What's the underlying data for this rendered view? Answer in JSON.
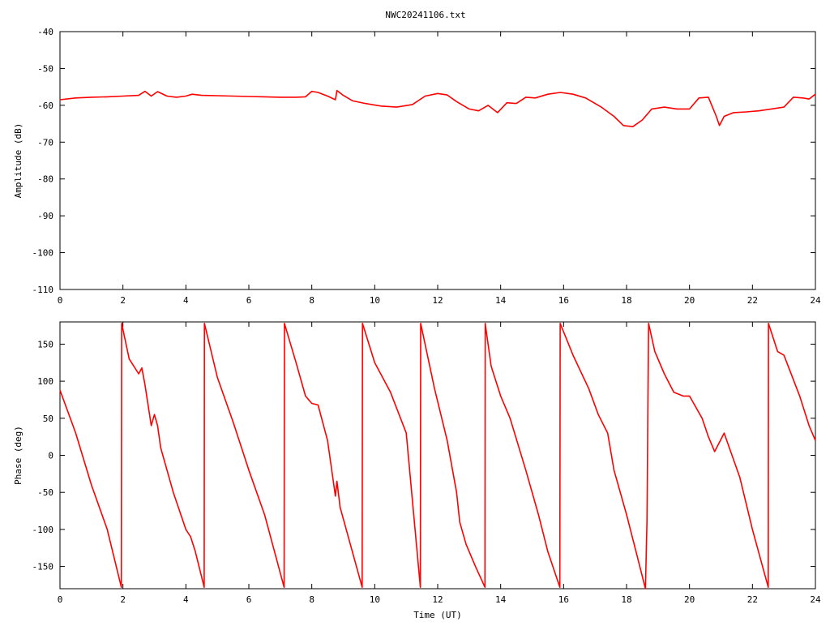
{
  "figure": {
    "title": "NWC20241106.txt"
  },
  "chart_data": [
    {
      "type": "line",
      "id": "amplitude",
      "xlabel": "",
      "ylabel": "Amplitude (dB)",
      "xlim": [
        0,
        24
      ],
      "ylim": [
        -110,
        -40
      ],
      "xticks": [
        0,
        2,
        4,
        6,
        8,
        10,
        12,
        14,
        16,
        18,
        20,
        22,
        24
      ],
      "yticks": [
        -110,
        -100,
        -90,
        -80,
        -70,
        -60,
        -50,
        -40
      ],
      "grid": false,
      "line_color": "#ff0000",
      "series": [
        {
          "x": [
            0,
            0.5,
            1,
            1.5,
            2,
            2.5,
            2.7,
            2.9,
            3.1,
            3.4,
            3.7,
            4.0,
            4.2,
            4.5,
            5.0,
            5.5,
            6.0,
            6.5,
            7.0,
            7.5,
            7.8,
            8.0,
            8.2,
            8.5,
            8.75,
            8.8,
            9.0,
            9.3,
            9.7,
            10.2,
            10.7,
            11.2,
            11.6,
            12.0,
            12.3,
            12.6,
            13.0,
            13.3,
            13.6,
            13.9,
            14.2,
            14.5,
            14.8,
            15.1,
            15.5,
            15.9,
            16.3,
            16.7,
            17.2,
            17.6,
            17.9,
            18.2,
            18.5,
            18.8,
            19.2,
            19.6,
            20.0,
            20.3,
            20.6,
            20.85,
            20.95,
            21.1,
            21.4,
            21.8,
            22.2,
            22.6,
            23.0,
            23.3,
            23.6,
            23.8,
            24.0
          ],
          "y": [
            -58.5,
            -58.0,
            -57.8,
            -57.7,
            -57.5,
            -57.3,
            -56.2,
            -57.5,
            -56.3,
            -57.5,
            -57.8,
            -57.5,
            -57.0,
            -57.3,
            -57.4,
            -57.5,
            -57.6,
            -57.7,
            -57.8,
            -57.8,
            -57.7,
            -56.2,
            -56.5,
            -57.5,
            -58.5,
            -56.0,
            -57.3,
            -58.8,
            -59.5,
            -60.2,
            -60.5,
            -59.8,
            -57.5,
            -56.8,
            -57.2,
            -59.0,
            -61.0,
            -61.5,
            -60.0,
            -62.0,
            -59.3,
            -59.5,
            -57.8,
            -58.0,
            -57.0,
            -56.5,
            -57.0,
            -58.0,
            -60.5,
            -63.0,
            -65.5,
            -65.8,
            -64.0,
            -61.0,
            -60.5,
            -61.0,
            -61.0,
            -58.0,
            -57.8,
            -63.0,
            -65.5,
            -63.0,
            -62.0,
            -61.8,
            -61.5,
            -61.0,
            -60.5,
            -57.8,
            -58.0,
            -58.3,
            -57.0
          ]
        }
      ]
    },
    {
      "type": "line",
      "id": "phase",
      "xlabel": "Time (UT)",
      "ylabel": "Phase (deg)",
      "xlim": [
        0,
        24
      ],
      "ylim": [
        -180,
        180
      ],
      "xticks": [
        0,
        2,
        4,
        6,
        8,
        10,
        12,
        14,
        16,
        18,
        20,
        22,
        24
      ],
      "yticks": [
        -150,
        -100,
        -50,
        0,
        50,
        100,
        150
      ],
      "grid": false,
      "line_color": "#ff0000",
      "series": [
        {
          "x": [
            0,
            0.5,
            1.0,
            1.5,
            1.95,
            1.96,
            2.2,
            2.5,
            2.6,
            2.7,
            2.9,
            3.0,
            3.1,
            3.2,
            3.6,
            4.0,
            4.15,
            4.3,
            4.58,
            4.59,
            5.0,
            5.5,
            6.0,
            6.5,
            7.12,
            7.13,
            7.5,
            7.8,
            8.0,
            8.2,
            8.5,
            8.75,
            8.8,
            8.9,
            9.6,
            9.61,
            10.0,
            10.5,
            11.0,
            11.45,
            11.46,
            11.9,
            12.3,
            12.6,
            12.7,
            12.9,
            13.2,
            13.5,
            13.51,
            13.7,
            14.0,
            14.3,
            14.8,
            15.2,
            15.5,
            15.88,
            15.89,
            16.3,
            16.8,
            17.1,
            17.4,
            17.6,
            18.0,
            18.3,
            18.6,
            18.65,
            18.7,
            18.9,
            19.2,
            19.5,
            19.8,
            20.0,
            20.4,
            20.6,
            20.8,
            21.1,
            21.6,
            22.0,
            22.5,
            22.51,
            22.8,
            23.0,
            23.5,
            23.8,
            24.0
          ],
          "y": [
            88,
            30,
            -40,
            -100,
            -178,
            178,
            130,
            110,
            118,
            95,
            40,
            55,
            40,
            10,
            -50,
            -100,
            -110,
            -130,
            -178,
            178,
            105,
            45,
            -20,
            -80,
            -178,
            178,
            125,
            80,
            70,
            68,
            20,
            -55,
            -35,
            -70,
            -178,
            178,
            125,
            85,
            30,
            -178,
            178,
            90,
            20,
            -50,
            -90,
            -120,
            -150,
            -178,
            178,
            120,
            80,
            50,
            -20,
            -80,
            -130,
            -178,
            178,
            135,
            90,
            55,
            30,
            -20,
            -80,
            -130,
            -180,
            -90,
            178,
            140,
            110,
            85,
            80,
            80,
            50,
            25,
            5,
            30,
            -30,
            -100,
            -178,
            178,
            140,
            135,
            80,
            40,
            20
          ]
        }
      ]
    }
  ]
}
